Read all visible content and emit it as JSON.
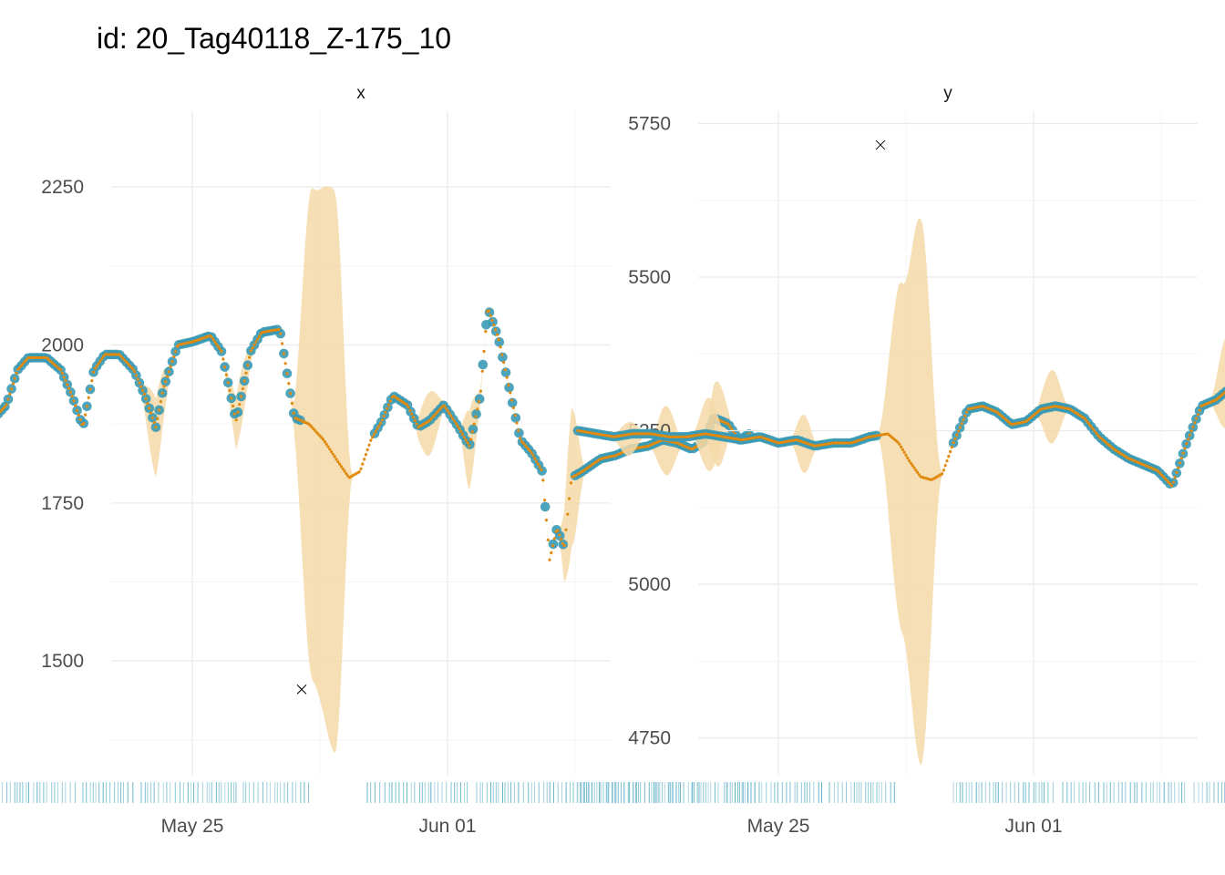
{
  "title": "id: 20_Tag40118_Z-175_10",
  "colors": {
    "observed": "#3a9ab5",
    "fitted": "#e08a10",
    "band": "#f5d9a8",
    "outlier": "#000000",
    "rug": "#5aaec6"
  },
  "chart_data": [
    {
      "type": "scatter",
      "panel": "x",
      "x_ticks": [
        "May 25",
        "Jun 01"
      ],
      "y_ticks": [
        1500,
        1750,
        2000,
        2250
      ],
      "ylim": [
        1320,
        2370
      ],
      "xlim_days": [
        -5.8,
        10.5
      ],
      "grid": true,
      "legend": "none",
      "outlier": {
        "day": 3.0,
        "value": 1455
      },
      "fit": [
        [
          -5.5,
          1880
        ],
        [
          -5.1,
          1905
        ],
        [
          -4.8,
          1960
        ],
        [
          -4.5,
          1980
        ],
        [
          -4.0,
          1980
        ],
        [
          -3.6,
          1960
        ],
        [
          -3.3,
          1920
        ],
        [
          -3.0,
          1870
        ],
        [
          -2.7,
          1960
        ],
        [
          -2.4,
          1985
        ],
        [
          -2.0,
          1985
        ],
        [
          -1.6,
          1960
        ],
        [
          -1.3,
          1920
        ],
        [
          -1.0,
          1870
        ],
        [
          -0.8,
          1930
        ],
        [
          -0.4,
          2000
        ],
        [
          0.0,
          2005
        ],
        [
          0.5,
          2015
        ],
        [
          0.8,
          1990
        ],
        [
          1.2,
          1880
        ],
        [
          1.6,
          1990
        ],
        [
          1.9,
          2020
        ],
        [
          2.4,
          2025
        ],
        [
          2.8,
          1885
        ],
        [
          3.2,
          1875
        ],
        [
          3.6,
          1850
        ],
        [
          4.0,
          1815
        ],
        [
          4.3,
          1790
        ],
        [
          4.6,
          1800
        ],
        [
          4.9,
          1850
        ],
        [
          5.2,
          1880
        ],
        [
          5.5,
          1920
        ],
        [
          5.9,
          1905
        ],
        [
          6.2,
          1870
        ],
        [
          6.5,
          1880
        ],
        [
          6.9,
          1905
        ],
        [
          7.3,
          1870
        ],
        [
          7.6,
          1840
        ],
        [
          7.9,
          1920
        ],
        [
          8.1,
          2060
        ],
        [
          8.4,
          2010
        ],
        [
          8.7,
          1930
        ],
        [
          9.0,
          1850
        ],
        [
          9.3,
          1830
        ],
        [
          9.6,
          1800
        ],
        [
          9.8,
          1660
        ],
        [
          10.0,
          1710
        ],
        [
          10.2,
          1680
        ],
        [
          10.4,
          1790
        ],
        [
          10.7,
          1800
        ],
        [
          11.2,
          1820
        ],
        [
          11.6,
          1825
        ],
        [
          12.0,
          1835
        ],
        [
          12.5,
          1840
        ],
        [
          12.9,
          1850
        ],
        [
          13.3,
          1845
        ],
        [
          13.7,
          1835
        ],
        [
          14.0,
          1845
        ],
        [
          14.3,
          1885
        ],
        [
          14.7,
          1875
        ],
        [
          15.0,
          1850
        ],
        [
          15.3,
          1860
        ]
      ],
      "band": [
        [
          -1.5,
          2,
          2
        ],
        [
          -1.0,
          45,
          80
        ],
        [
          -0.5,
          2,
          2
        ],
        [
          0.8,
          2,
          2
        ],
        [
          1.3,
          40,
          50
        ],
        [
          1.8,
          2,
          2
        ],
        [
          2.7,
          2,
          2
        ],
        [
          3.3,
          380,
          400
        ],
        [
          3.9,
          420,
          470
        ],
        [
          4.4,
          2,
          2
        ],
        [
          6.0,
          2,
          2
        ],
        [
          6.5,
          45,
          55
        ],
        [
          7.0,
          2,
          2
        ],
        [
          7.3,
          2,
          2
        ],
        [
          7.6,
          55,
          70
        ],
        [
          8.0,
          2,
          2
        ],
        [
          10.0,
          2,
          2
        ],
        [
          10.4,
          110,
          110
        ],
        [
          10.8,
          2,
          2
        ],
        [
          12.5,
          2,
          2
        ],
        [
          13.0,
          55,
          55
        ],
        [
          13.5,
          2,
          2
        ],
        [
          14.0,
          2,
          2
        ],
        [
          14.4,
          60,
          75
        ],
        [
          14.9,
          2,
          2
        ]
      ],
      "observed_segments": [
        [
          -5.5,
          3.0
        ],
        [
          5.0,
          9.7
        ],
        [
          9.9,
          10.2
        ],
        [
          10.5,
          15.3
        ]
      ],
      "rug_segments": [
        [
          -5.5,
          -3.2
        ],
        [
          -3.0,
          -1.6
        ],
        [
          -1.4,
          1.2
        ],
        [
          1.4,
          3.2
        ],
        [
          4.8,
          7.6
        ],
        [
          7.8,
          11.2
        ],
        [
          11.4,
          12.3
        ],
        [
          12.6,
          13.5
        ],
        [
          13.7,
          14.2
        ],
        [
          14.6,
          15.5
        ]
      ]
    },
    {
      "type": "scatter",
      "panel": "y",
      "x_ticks": [
        "May 25",
        "Jun 01"
      ],
      "y_ticks": [
        4750,
        5000,
        5250,
        5500,
        5750
      ],
      "ylim": [
        4690,
        5770
      ],
      "xlim_days": [
        -5.8,
        10.5
      ],
      "grid": true,
      "legend": "none",
      "outlier": {
        "day": 2.8,
        "value": 5715
      },
      "fit": [
        [
          -5.5,
          5250
        ],
        [
          -5.0,
          5245
        ],
        [
          -4.5,
          5240
        ],
        [
          -4.0,
          5245
        ],
        [
          -3.5,
          5245
        ],
        [
          -3.0,
          5240
        ],
        [
          -2.5,
          5240
        ],
        [
          -2.0,
          5245
        ],
        [
          -1.5,
          5240
        ],
        [
          -1.0,
          5235
        ],
        [
          -0.5,
          5240
        ],
        [
          0.0,
          5230
        ],
        [
          0.5,
          5235
        ],
        [
          1.0,
          5225
        ],
        [
          1.5,
          5230
        ],
        [
          2.0,
          5230
        ],
        [
          2.5,
          5240
        ],
        [
          3.0,
          5245
        ],
        [
          3.3,
          5230
        ],
        [
          3.6,
          5200
        ],
        [
          3.9,
          5175
        ],
        [
          4.2,
          5170
        ],
        [
          4.5,
          5180
        ],
        [
          4.8,
          5230
        ],
        [
          5.2,
          5285
        ],
        [
          5.6,
          5290
        ],
        [
          6.0,
          5280
        ],
        [
          6.4,
          5260
        ],
        [
          6.8,
          5265
        ],
        [
          7.2,
          5285
        ],
        [
          7.6,
          5290
        ],
        [
          8.0,
          5285
        ],
        [
          8.4,
          5270
        ],
        [
          8.8,
          5240
        ],
        [
          9.2,
          5220
        ],
        [
          9.6,
          5205
        ],
        [
          10.0,
          5195
        ],
        [
          10.4,
          5185
        ],
        [
          10.8,
          5160
        ],
        [
          11.2,
          5230
        ],
        [
          11.6,
          5290
        ],
        [
          12.0,
          5300
        ],
        [
          12.4,
          5320
        ],
        [
          12.8,
          5335
        ],
        [
          13.2,
          5330
        ],
        [
          13.6,
          5325
        ],
        [
          14.0,
          5330
        ],
        [
          14.4,
          5325
        ],
        [
          14.8,
          5320
        ],
        [
          15.2,
          5320
        ],
        [
          15.6,
          5325
        ],
        [
          16.0,
          5320
        ],
        [
          16.4,
          5325
        ],
        [
          16.8,
          5320
        ],
        [
          17.0,
          5300
        ],
        [
          17.3,
          5260
        ]
      ],
      "band": [
        [
          -4.6,
          2,
          2
        ],
        [
          -4.1,
          20,
          35
        ],
        [
          -3.6,
          2,
          2
        ],
        [
          -2.4,
          2,
          2
        ],
        [
          -1.9,
          60,
          60
        ],
        [
          -1.4,
          2,
          2
        ],
        [
          0.3,
          2,
          2
        ],
        [
          0.7,
          45,
          50
        ],
        [
          1.1,
          2,
          2
        ],
        [
          2.7,
          2,
          2
        ],
        [
          3.4,
          270,
          300
        ],
        [
          3.9,
          420,
          470
        ],
        [
          4.5,
          2,
          2
        ],
        [
          7.0,
          2,
          2
        ],
        [
          7.5,
          60,
          60
        ],
        [
          8.0,
          2,
          2
        ],
        [
          11.8,
          2,
          2
        ],
        [
          12.3,
          90,
          60
        ],
        [
          12.8,
          2,
          2
        ],
        [
          13.1,
          2,
          2
        ],
        [
          13.6,
          110,
          90
        ],
        [
          14.1,
          2,
          2
        ],
        [
          14.3,
          2,
          2
        ],
        [
          14.7,
          80,
          70
        ],
        [
          15.1,
          2,
          2
        ],
        [
          15.3,
          2,
          2
        ],
        [
          15.8,
          60,
          50
        ],
        [
          16.3,
          2,
          2
        ],
        [
          16.6,
          2,
          2
        ],
        [
          17.0,
          110,
          120
        ],
        [
          17.4,
          2,
          2
        ]
      ],
      "observed_segments": [
        [
          -5.5,
          2.7
        ],
        [
          4.8,
          17.3
        ]
      ],
      "rug_segments": [
        [
          -5.5,
          -3.2
        ],
        [
          -3.0,
          -1.6
        ],
        [
          -1.4,
          1.2
        ],
        [
          1.4,
          3.2
        ],
        [
          4.8,
          7.6
        ],
        [
          7.8,
          11.2
        ],
        [
          11.4,
          12.3
        ],
        [
          12.6,
          13.5
        ],
        [
          13.7,
          14.2
        ],
        [
          14.6,
          15.5
        ]
      ]
    }
  ]
}
